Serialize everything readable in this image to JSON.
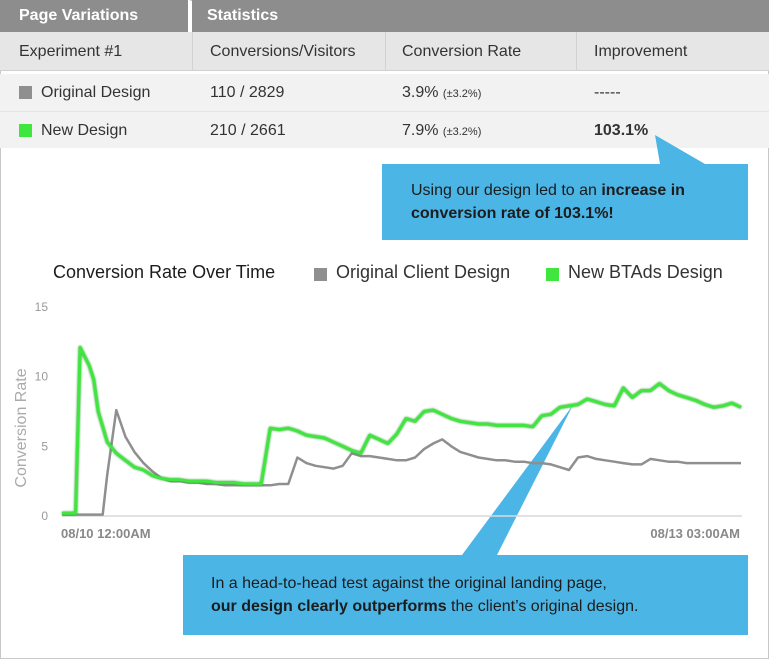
{
  "table": {
    "header_left": "Page Variations",
    "header_right": "Statistics",
    "columns": [
      "Experiment #1",
      "Conversions/Visitors",
      "Conversion Rate",
      "Improvement"
    ],
    "rows": [
      {
        "name": "Original Design",
        "color": "#8f8f8f",
        "conv": "110 / 2829",
        "rate": "3.9%",
        "rate_ci": "(±3.2%)",
        "improvement": "-----"
      },
      {
        "name": "New Design",
        "color": "#3ee63e",
        "conv": "210 / 2661",
        "rate": "7.9%",
        "rate_ci": "(±3.2%)",
        "improvement": "103.1%"
      }
    ]
  },
  "callout_top": {
    "text_pre": "Using our design led to an ",
    "text_bold": "increase in conversion rate of 103.1%!"
  },
  "callout_bottom": {
    "line1": "In a head-to-head test against the original landing page,",
    "line2_bold": "our design clearly outperforms",
    "line2_rest": " the client’s original design."
  },
  "chart_data": {
    "type": "line",
    "title": "Conversion Rate Over Time",
    "xlabel": "",
    "ylabel": "Conversion Rate",
    "ylim": [
      0,
      15
    ],
    "yticks": [
      0,
      5,
      10,
      15
    ],
    "x_tick_labels": [
      "08/10 12:00AM",
      "08/13 03:00AM"
    ],
    "xlim": [
      0,
      75
    ],
    "grid": false,
    "legend_position": "top",
    "series": [
      {
        "name": "Original Client Design",
        "color": "#8f8f8f",
        "points": [
          [
            0,
            0.1
          ],
          [
            2,
            0.1
          ],
          [
            2.5,
            0.1
          ],
          [
            3,
            0.1
          ],
          [
            4,
            0.1
          ],
          [
            4.5,
            0.1
          ],
          [
            5,
            3.0
          ],
          [
            6,
            7.6
          ],
          [
            7,
            5.7
          ],
          [
            8,
            4.6
          ],
          [
            9,
            3.8
          ],
          [
            10,
            3.2
          ],
          [
            11,
            2.7
          ],
          [
            12,
            2.5
          ],
          [
            13,
            2.5
          ],
          [
            14,
            2.4
          ],
          [
            15,
            2.4
          ],
          [
            16,
            2.3
          ],
          [
            17,
            2.3
          ],
          [
            18,
            2.2
          ],
          [
            19,
            2.2
          ],
          [
            20,
            2.2
          ],
          [
            21,
            2.2
          ],
          [
            22,
            2.2
          ],
          [
            23,
            2.2
          ],
          [
            24,
            2.3
          ],
          [
            25,
            2.3
          ],
          [
            26,
            4.2
          ],
          [
            27,
            3.8
          ],
          [
            28,
            3.6
          ],
          [
            29,
            3.5
          ],
          [
            30,
            3.4
          ],
          [
            31,
            3.6
          ],
          [
            32,
            4.5
          ],
          [
            33,
            4.3
          ],
          [
            34,
            4.3
          ],
          [
            35,
            4.2
          ],
          [
            36,
            4.1
          ],
          [
            37,
            4.0
          ],
          [
            38,
            4.0
          ],
          [
            39,
            4.2
          ],
          [
            40,
            4.8
          ],
          [
            41,
            5.2
          ],
          [
            42,
            5.5
          ],
          [
            43,
            5.0
          ],
          [
            44,
            4.6
          ],
          [
            45,
            4.4
          ],
          [
            46,
            4.2
          ],
          [
            47,
            4.1
          ],
          [
            48,
            4.0
          ],
          [
            49,
            4.0
          ],
          [
            50,
            3.9
          ],
          [
            51,
            3.9
          ],
          [
            52,
            3.8
          ],
          [
            53,
            3.8
          ],
          [
            54,
            3.7
          ],
          [
            55,
            3.5
          ],
          [
            56,
            3.3
          ],
          [
            57,
            4.2
          ],
          [
            58,
            4.3
          ],
          [
            59,
            4.1
          ],
          [
            60,
            4.0
          ],
          [
            61,
            3.9
          ],
          [
            62,
            3.8
          ],
          [
            63,
            3.7
          ],
          [
            64,
            3.7
          ],
          [
            65,
            4.1
          ],
          [
            66,
            4.0
          ],
          [
            67,
            3.9
          ],
          [
            68,
            3.9
          ],
          [
            69,
            3.8
          ],
          [
            70,
            3.8
          ],
          [
            71,
            3.8
          ],
          [
            72,
            3.8
          ],
          [
            73,
            3.8
          ],
          [
            74,
            3.8
          ],
          [
            75,
            3.8
          ]
        ]
      },
      {
        "name": "New BTAds Design",
        "color": "#3ee63e",
        "points": [
          [
            0,
            0.2
          ],
          [
            1,
            0.2
          ],
          [
            1.5,
            0.2
          ],
          [
            2,
            12.1
          ],
          [
            3,
            10.8
          ],
          [
            3.5,
            9.8
          ],
          [
            4,
            7.5
          ],
          [
            5,
            5.3
          ],
          [
            6,
            4.5
          ],
          [
            7,
            4.0
          ],
          [
            8,
            3.5
          ],
          [
            9,
            3.3
          ],
          [
            10,
            2.9
          ],
          [
            11,
            2.7
          ],
          [
            12,
            2.6
          ],
          [
            13,
            2.6
          ],
          [
            14,
            2.5
          ],
          [
            15,
            2.5
          ],
          [
            16,
            2.5
          ],
          [
            17,
            2.4
          ],
          [
            18,
            2.4
          ],
          [
            19,
            2.4
          ],
          [
            20,
            2.3
          ],
          [
            21,
            2.3
          ],
          [
            22,
            2.3
          ],
          [
            23,
            6.3
          ],
          [
            24,
            6.2
          ],
          [
            25,
            6.3
          ],
          [
            26,
            6.1
          ],
          [
            27,
            5.8
          ],
          [
            28,
            5.7
          ],
          [
            29,
            5.6
          ],
          [
            30,
            5.3
          ],
          [
            31,
            5.0
          ],
          [
            32,
            4.7
          ],
          [
            33,
            4.5
          ],
          [
            34,
            5.8
          ],
          [
            35,
            5.5
          ],
          [
            36,
            5.2
          ],
          [
            37,
            5.9
          ],
          [
            38,
            7.0
          ],
          [
            39,
            6.8
          ],
          [
            40,
            7.5
          ],
          [
            41,
            7.6
          ],
          [
            42,
            7.3
          ],
          [
            43,
            7.0
          ],
          [
            44,
            6.8
          ],
          [
            45,
            6.7
          ],
          [
            46,
            6.6
          ],
          [
            47,
            6.6
          ],
          [
            48,
            6.5
          ],
          [
            49,
            6.5
          ],
          [
            50,
            6.5
          ],
          [
            51,
            6.5
          ],
          [
            52,
            6.4
          ],
          [
            53,
            7.2
          ],
          [
            54,
            7.3
          ],
          [
            55,
            7.8
          ],
          [
            56,
            7.9
          ],
          [
            57,
            8.0
          ],
          [
            58,
            8.4
          ],
          [
            59,
            8.2
          ],
          [
            60,
            8.0
          ],
          [
            61,
            7.9
          ],
          [
            62,
            9.2
          ],
          [
            63,
            8.5
          ],
          [
            64,
            9.0
          ],
          [
            65,
            9.0
          ],
          [
            66,
            9.5
          ],
          [
            67,
            9.0
          ],
          [
            68,
            8.7
          ],
          [
            69,
            8.5
          ],
          [
            70,
            8.3
          ],
          [
            71,
            8.0
          ],
          [
            72,
            7.8
          ],
          [
            73,
            7.9
          ],
          [
            74,
            8.1
          ],
          [
            75,
            7.8
          ]
        ]
      }
    ]
  }
}
